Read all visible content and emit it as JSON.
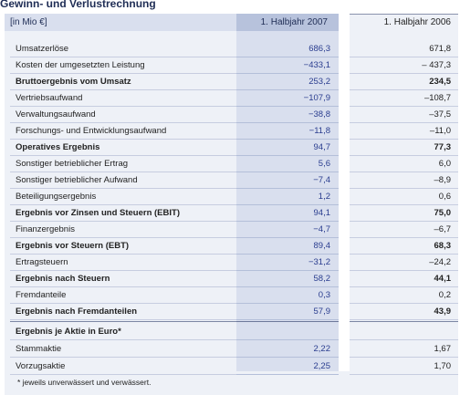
{
  "title": "Gewinn- und Verlustrechnung",
  "header": {
    "unit": "[in Mio €]",
    "col_2007": "1. Halbjahr 2007",
    "col_2006": "1. Halbjahr 2006"
  },
  "rows": [
    {
      "label": "Umsatzerlöse",
      "v2007": "686,3",
      "v2006": "671,8",
      "bold": false
    },
    {
      "label": "Kosten der umgesetzten Leistung",
      "v2007": "−433,1",
      "v2006": "– 437,3",
      "bold": false
    },
    {
      "label": "Bruttoergebnis vom Umsatz",
      "v2007": "253,2",
      "v2006": "234,5",
      "bold": true
    },
    {
      "label": "Vertriebsaufwand",
      "v2007": "−107,9",
      "v2006": "–108,7",
      "bold": false
    },
    {
      "label": "Verwaltungsaufwand",
      "v2007": "−38,8",
      "v2006": "–37,5",
      "bold": false
    },
    {
      "label": "Forschungs- und Entwicklungsaufwand",
      "v2007": "−11,8",
      "v2006": "–11,0",
      "bold": false
    },
    {
      "label": "Operatives Ergebnis",
      "v2007": "94,7",
      "v2006": "77,3",
      "bold": true
    },
    {
      "label": "Sonstiger betrieblicher Ertrag",
      "v2007": "5,6",
      "v2006": "6,0",
      "bold": false
    },
    {
      "label": "Sonstiger betrieblicher Aufwand",
      "v2007": "−7,4",
      "v2006": "–8,9",
      "bold": false
    },
    {
      "label": "Beteiligungsergebnis",
      "v2007": "1,2",
      "v2006": "0,6",
      "bold": false
    },
    {
      "label": "Ergebnis vor Zinsen und Steuern  (EBIT)",
      "v2007": "94,1",
      "v2006": "75,0",
      "bold": true
    },
    {
      "label": "Finanzergebnis",
      "v2007": "−4,7",
      "v2006": "–6,7",
      "bold": false
    },
    {
      "label": "Ergebnis vor Steuern (EBT)",
      "v2007": "89,4",
      "v2006": "68,3",
      "bold": true
    },
    {
      "label": "Ertragsteuern",
      "v2007": "−31,2",
      "v2006": "–24,2",
      "bold": false
    },
    {
      "label": "Ergebnis nach Steuern",
      "v2007": "58,2",
      "v2006": "44,1",
      "bold": true
    },
    {
      "label": "Fremdanteile",
      "v2007": "0,3",
      "v2006": "0,2",
      "bold": false
    },
    {
      "label": "Ergebnis nach Fremdanteilen",
      "v2007": "57,9",
      "v2006": "43,9",
      "bold": true
    }
  ],
  "eps": {
    "heading": "Ergebnis je Aktie in Euro*",
    "rows": [
      {
        "label": "Stammaktie",
        "v2007": "2,22",
        "v2006": "1,67"
      },
      {
        "label": "Vorzugsaktie",
        "v2007": "2,25",
        "v2006": "1,70"
      }
    ]
  },
  "footnote": "*  jeweils unverwässert und verwässert."
}
